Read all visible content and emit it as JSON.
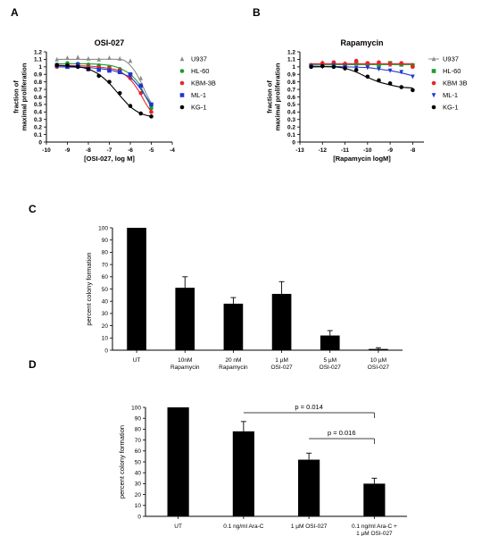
{
  "chart_data": [
    {
      "panel": "A",
      "type": "scatter",
      "title": "OSI-027",
      "xlabel": "[OSI-027, log M]",
      "ylabel": "fraction of\nmaximal proliferation",
      "xlim": [
        -10,
        -4
      ],
      "ylim": [
        0,
        1.2
      ],
      "xticks": [
        -10,
        -9,
        -8,
        -7,
        -6,
        -5,
        -4
      ],
      "yticks": [
        0,
        0.1,
        0.2,
        0.3,
        0.4,
        0.5,
        0.6,
        0.7,
        0.8,
        0.9,
        1,
        1.1,
        1.2
      ],
      "legend_position": "right",
      "grid": false,
      "series": [
        {
          "name": "U937",
          "color": "#8c8c8c",
          "marker": "triangle",
          "x": [
            -9.5,
            -9,
            -8.5,
            -8,
            -7.5,
            -7,
            -6.5,
            -6,
            -5.5,
            -5
          ],
          "y": [
            1.1,
            1.12,
            1.13,
            1.11,
            1.1,
            1.12,
            1.11,
            1.08,
            0.85,
            0.5
          ],
          "fit": [
            [
              -9.5,
              1.1
            ],
            [
              -8,
              1.1
            ],
            [
              -6.6,
              1.1
            ],
            [
              -6.2,
              1.07
            ],
            [
              -5.8,
              0.95
            ],
            [
              -5.5,
              0.8
            ],
            [
              -5.2,
              0.62
            ],
            [
              -5,
              0.52
            ]
          ]
        },
        {
          "name": "HL-60",
          "color": "#1f9a2c",
          "marker": "circle",
          "x": [
            -9.5,
            -9,
            -8.5,
            -8,
            -7.5,
            -7,
            -6.5,
            -6,
            -5.5,
            -5
          ],
          "y": [
            1.03,
            1.05,
            1.04,
            1.03,
            1.02,
            1.0,
            0.97,
            0.9,
            0.75,
            0.45
          ],
          "fit": [
            [
              -9.5,
              1.04
            ],
            [
              -8,
              1.04
            ],
            [
              -7,
              1.02
            ],
            [
              -6.5,
              0.98
            ],
            [
              -6,
              0.9
            ],
            [
              -5.6,
              0.78
            ],
            [
              -5.3,
              0.62
            ],
            [
              -5,
              0.46
            ]
          ]
        },
        {
          "name": "KBM-3B",
          "color": "#e8232a",
          "marker": "circle",
          "x": [
            -9.5,
            -9,
            -8.5,
            -8,
            -7.5,
            -7,
            -6.5,
            -6,
            -5.5,
            -5
          ],
          "y": [
            1.0,
            1.02,
            1.02,
            1.0,
            0.99,
            0.98,
            0.95,
            0.85,
            0.65,
            0.4
          ],
          "fit": [
            [
              -9.5,
              1.02
            ],
            [
              -8,
              1.01
            ],
            [
              -7,
              0.98
            ],
            [
              -6.5,
              0.94
            ],
            [
              -6,
              0.83
            ],
            [
              -5.6,
              0.68
            ],
            [
              -5.3,
              0.53
            ],
            [
              -5,
              0.4
            ]
          ]
        },
        {
          "name": "ML-1",
          "color": "#1f35d0",
          "marker": "square",
          "x": [
            -9.5,
            -9,
            -8.5,
            -8,
            -7.5,
            -7,
            -6.5,
            -6,
            -5.5,
            -5
          ],
          "y": [
            1.02,
            1.0,
            1.03,
            0.97,
            0.96,
            0.95,
            0.93,
            0.9,
            0.75,
            0.5
          ],
          "fit": [
            [
              -9.5,
              1.0
            ],
            [
              -8,
              0.99
            ],
            [
              -7,
              0.96
            ],
            [
              -6.5,
              0.92
            ],
            [
              -6,
              0.86
            ],
            [
              -5.6,
              0.74
            ],
            [
              -5.3,
              0.62
            ],
            [
              -5,
              0.5
            ]
          ]
        },
        {
          "name": "KG-1",
          "color": "#000000",
          "marker": "circle",
          "x": [
            -9.5,
            -9,
            -8.5,
            -8,
            -7.5,
            -7,
            -6.5,
            -6,
            -5.5,
            -5
          ],
          "y": [
            1.02,
            1.02,
            1.0,
            0.97,
            0.88,
            0.8,
            0.65,
            0.48,
            0.38,
            0.34
          ],
          "fit": [
            [
              -9.5,
              1.02
            ],
            [
              -8.5,
              1.0
            ],
            [
              -8,
              0.97
            ],
            [
              -7.5,
              0.9
            ],
            [
              -7,
              0.78
            ],
            [
              -6.5,
              0.62
            ],
            [
              -6,
              0.47
            ],
            [
              -5.5,
              0.38
            ],
            [
              -5,
              0.34
            ]
          ]
        }
      ]
    },
    {
      "panel": "B",
      "type": "scatter",
      "title": "Rapamycin",
      "xlabel": "[Rapamycin logM]",
      "ylabel": "fraction of\nmaximal proliferation",
      "xlim": [
        -13,
        -7.5
      ],
      "ylim": [
        0,
        1.2
      ],
      "xticks": [
        -13,
        -12,
        -11,
        -10,
        -9,
        -8
      ],
      "yticks": [
        0,
        0.1,
        0.2,
        0.3,
        0.4,
        0.5,
        0.6,
        0.7,
        0.8,
        0.9,
        1,
        1.1,
        1.2
      ],
      "legend_position": "right",
      "grid": false,
      "series": [
        {
          "name": "U937",
          "color": "#8c8c8c",
          "marker": "triangle",
          "x": [
            -12.5,
            -12,
            -11.5,
            -11,
            -10.5,
            -10,
            -9.5,
            -9,
            -8.5,
            -8
          ],
          "y": [
            1.03,
            1.06,
            1.04,
            1.05,
            1.06,
            1.04,
            1.05,
            1.03,
            1.04,
            1.03
          ],
          "fit": [
            [
              -12.5,
              1.04
            ],
            [
              -8,
              1.04
            ]
          ]
        },
        {
          "name": "HL-60",
          "color": "#1f9a2c",
          "marker": "square",
          "x": [
            -12.5,
            -12,
            -11.5,
            -11,
            -10.5,
            -10,
            -9.5,
            -9,
            -8.5,
            -8
          ],
          "y": [
            1.02,
            1.03,
            1.04,
            1.03,
            1.05,
            1.04,
            1.02,
            1.05,
            1.03,
            1.02
          ],
          "fit": [
            [
              -12.5,
              1.03
            ],
            [
              -8,
              1.03
            ]
          ]
        },
        {
          "name": "KBM 3B",
          "color": "#e8232a",
          "marker": "circle",
          "x": [
            -12.5,
            -12,
            -11.5,
            -11,
            -10.5,
            -10,
            -9.5,
            -9,
            -8.5,
            -8
          ],
          "y": [
            1.02,
            1.05,
            1.06,
            1.04,
            1.08,
            1.05,
            1.06,
            1.04,
            1.05,
            1.0
          ],
          "fit": [
            [
              -12.5,
              1.04
            ],
            [
              -8,
              1.04
            ]
          ]
        },
        {
          "name": "ML-1",
          "color": "#1f35d0",
          "marker": "triangle-down",
          "x": [
            -12.5,
            -12,
            -11.5,
            -11,
            -10.5,
            -10,
            -9.5,
            -9,
            -8.5,
            -8
          ],
          "y": [
            1.01,
            1.0,
            1.02,
            1.0,
            0.99,
            0.99,
            0.97,
            0.95,
            0.93,
            0.87
          ],
          "fit": [
            [
              -12.5,
              1.01
            ],
            [
              -11,
              1.0
            ],
            [
              -10,
              0.99
            ],
            [
              -9.5,
              0.97
            ],
            [
              -9,
              0.95
            ],
            [
              -8.5,
              0.92
            ],
            [
              -8,
              0.88
            ]
          ]
        },
        {
          "name": "KG-1",
          "color": "#000000",
          "marker": "circle",
          "x": [
            -12.5,
            -12,
            -11.5,
            -11,
            -10.5,
            -10,
            -9.5,
            -9,
            -8.5,
            -8
          ],
          "y": [
            1.0,
            1.01,
            1.0,
            0.98,
            0.96,
            0.87,
            0.82,
            0.78,
            0.73,
            0.69
          ],
          "fit": [
            [
              -12.5,
              1.0
            ],
            [
              -11.5,
              1.0
            ],
            [
              -11,
              0.98
            ],
            [
              -10.5,
              0.93
            ],
            [
              -10,
              0.86
            ],
            [
              -9.5,
              0.8
            ],
            [
              -9,
              0.76
            ],
            [
              -8.5,
              0.73
            ],
            [
              -8,
              0.72
            ]
          ]
        }
      ]
    },
    {
      "panel": "C",
      "type": "bar",
      "title": "",
      "xlabel": "",
      "ylabel": "percent colony formation",
      "ylim": [
        0,
        100
      ],
      "yticks": [
        0,
        10,
        20,
        30,
        40,
        50,
        60,
        70,
        80,
        90,
        100
      ],
      "grid": false,
      "categories": [
        "UT",
        "10nM\nRapamycin",
        "20 nM\nRapamycin",
        "1 µM\nOSI-027",
        "5 µM\nOSI-027",
        "10 µM\nOSI-027"
      ],
      "values": [
        100,
        51,
        38,
        46,
        12,
        1
      ],
      "errors": [
        0,
        9,
        5,
        10,
        4,
        1
      ]
    },
    {
      "panel": "D",
      "type": "bar",
      "title": "",
      "xlabel": "",
      "ylabel": "percent colony formation",
      "ylim": [
        0,
        100
      ],
      "yticks": [
        0,
        10,
        20,
        30,
        40,
        50,
        60,
        70,
        80,
        90,
        100
      ],
      "grid": false,
      "categories": [
        "UT",
        "0.1 ng/ml Ara-C",
        "1 µM OSI-027",
        "0.1 ng/ml Ara-C +\n1 µM OSI-027"
      ],
      "values": [
        100,
        78,
        52,
        30
      ],
      "errors": [
        0,
        9,
        6,
        5
      ],
      "annotations": [
        {
          "text": "p = 0.014",
          "from": 1,
          "to": 3
        },
        {
          "text": "p = 0.016",
          "from": 2,
          "to": 3
        }
      ]
    }
  ]
}
